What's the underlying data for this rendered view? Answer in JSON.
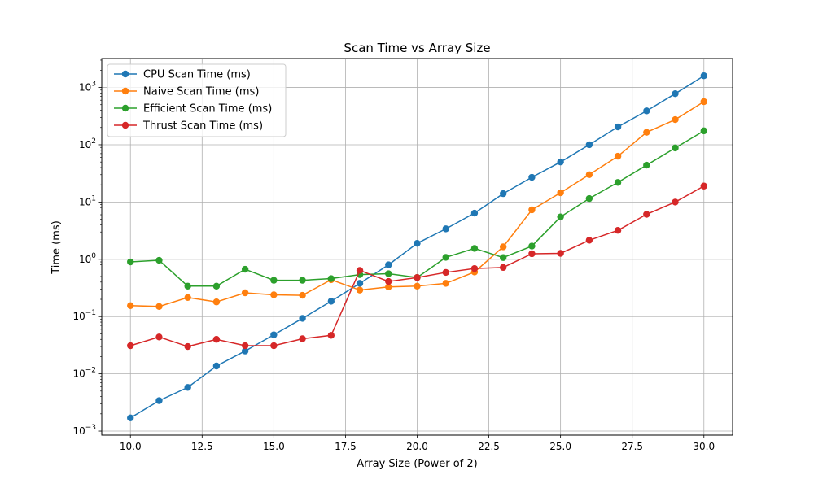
{
  "chart_data": {
    "type": "line",
    "title": "Scan Time vs Array Size",
    "xlabel": "Array Size (Power of 2)",
    "ylabel": "Time (ms)",
    "xlim": [
      9.0,
      31.0
    ],
    "ylim": [
      0.00085,
      3200
    ],
    "yscale": "log",
    "grid": true,
    "legend_position": "upper left",
    "x_ticks": [
      10.0,
      12.5,
      15.0,
      17.5,
      20.0,
      22.5,
      25.0,
      27.5,
      30.0
    ],
    "x_tick_labels": [
      "10.0",
      "12.5",
      "15.0",
      "17.5",
      "20.0",
      "22.5",
      "25.0",
      "27.5",
      "30.0"
    ],
    "y_ticks": [
      {
        "value": 0.001,
        "base": "10",
        "exp": "−3"
      },
      {
        "value": 0.01,
        "base": "10",
        "exp": "−2"
      },
      {
        "value": 0.1,
        "base": "10",
        "exp": "−1"
      },
      {
        "value": 1,
        "base": "10",
        "exp": "0"
      },
      {
        "value": 10,
        "base": "10",
        "exp": "1"
      },
      {
        "value": 100,
        "base": "10",
        "exp": "2"
      },
      {
        "value": 1000,
        "base": "10",
        "exp": "3"
      }
    ],
    "x": [
      10,
      11,
      12,
      13,
      14,
      15,
      16,
      17,
      18,
      19,
      20,
      21,
      22,
      23,
      24,
      25,
      26,
      27,
      28,
      29,
      30
    ],
    "series": [
      {
        "name": "CPU Scan Time (ms)",
        "color": "#1f77b4",
        "values": [
          0.0017,
          0.0034,
          0.0058,
          0.0137,
          0.025,
          0.048,
          0.093,
          0.185,
          0.38,
          0.8,
          1.9,
          3.4,
          6.4,
          14,
          27,
          50,
          100,
          205,
          390,
          780,
          1600
        ]
      },
      {
        "name": "Naive Scan Time (ms)",
        "color": "#ff7f0e",
        "values": [
          0.155,
          0.15,
          0.215,
          0.18,
          0.26,
          0.24,
          0.235,
          0.44,
          0.29,
          0.33,
          0.34,
          0.38,
          0.6,
          1.65,
          7.3,
          14.5,
          30,
          63,
          165,
          275,
          565
        ]
      },
      {
        "name": "Efficient Scan Time (ms)",
        "color": "#2ca02c",
        "values": [
          0.9,
          0.96,
          0.34,
          0.34,
          0.67,
          0.43,
          0.43,
          0.46,
          0.54,
          0.56,
          0.48,
          1.08,
          1.55,
          1.07,
          1.7,
          5.5,
          11.5,
          22,
          44,
          88,
          175
        ]
      },
      {
        "name": "Thrust Scan Time (ms)",
        "color": "#d62728",
        "values": [
          0.031,
          0.044,
          0.03,
          0.04,
          0.031,
          0.031,
          0.041,
          0.047,
          0.64,
          0.41,
          0.48,
          0.59,
          0.69,
          0.72,
          1.25,
          1.27,
          2.15,
          3.2,
          6.1,
          10,
          19
        ]
      }
    ]
  }
}
